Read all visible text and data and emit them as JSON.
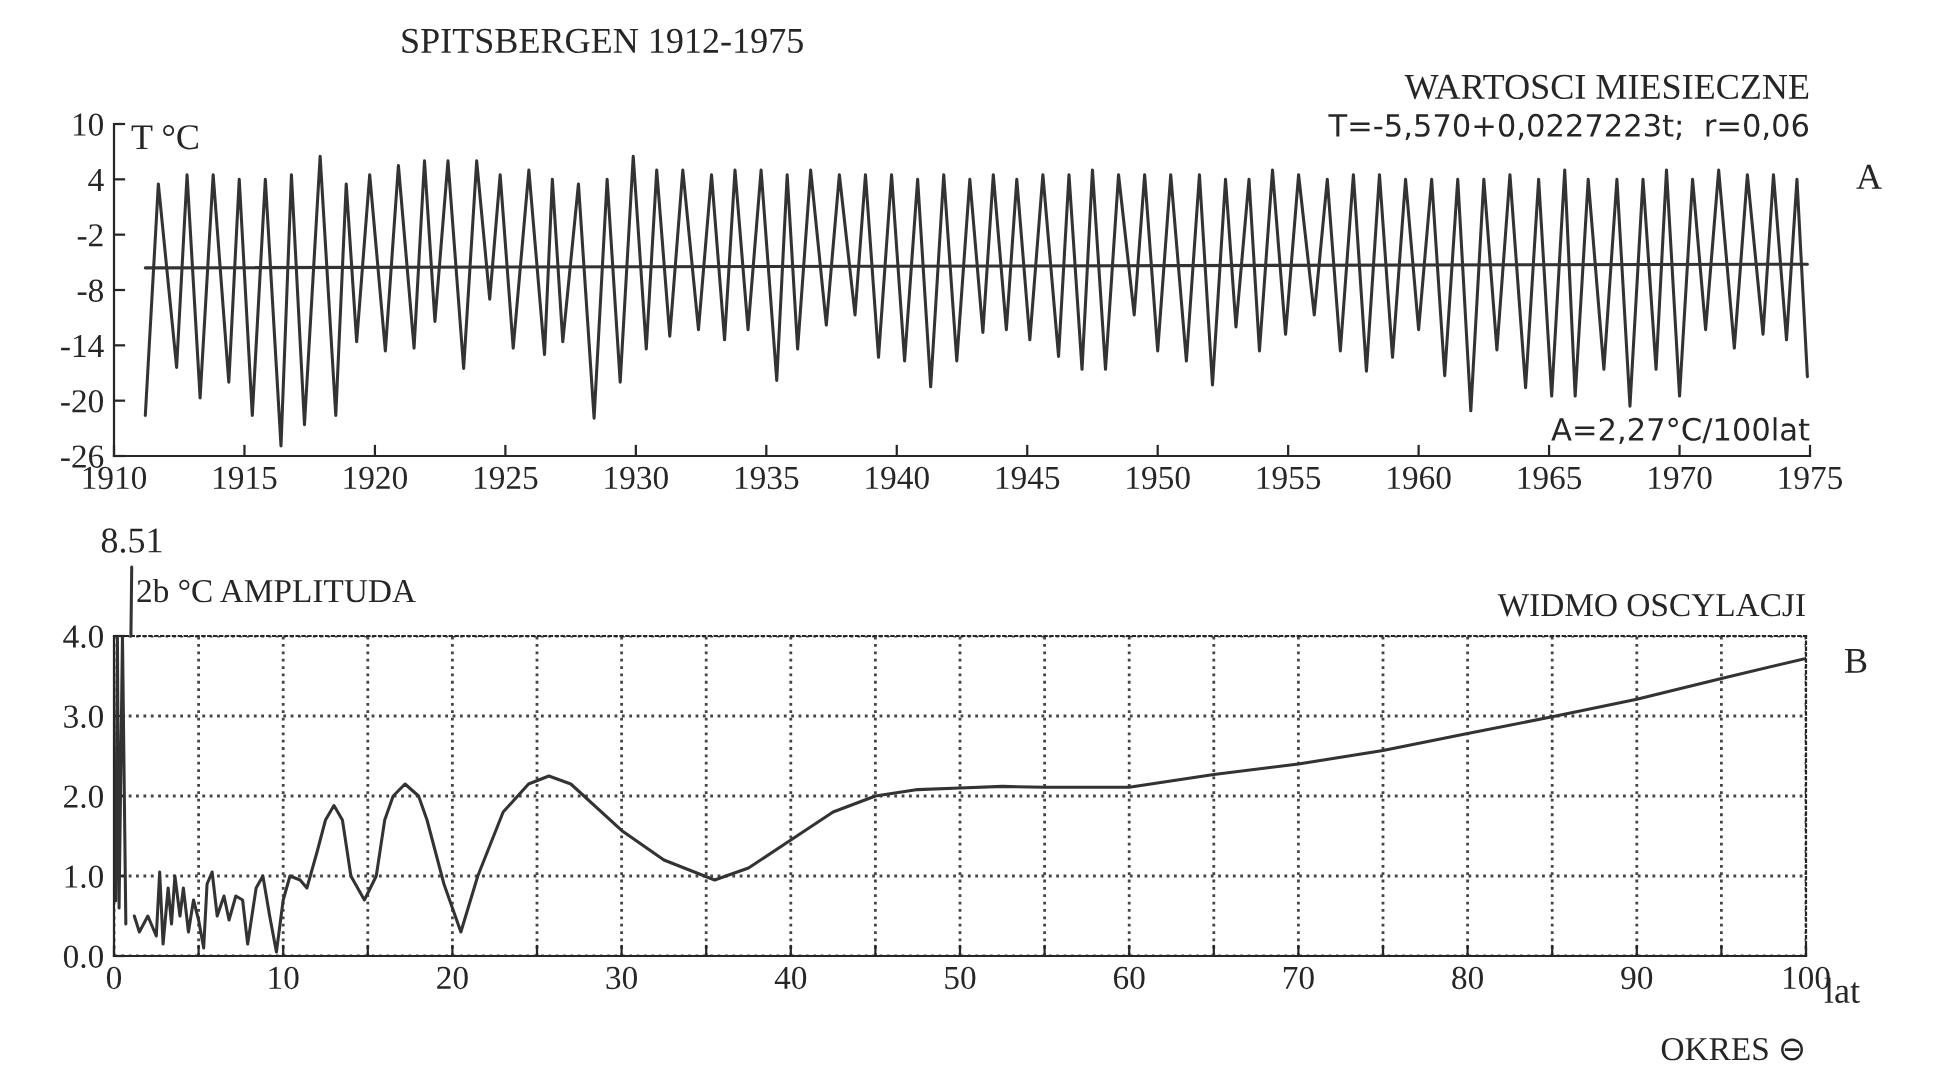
{
  "chart_data": [
    {
      "type": "line",
      "title": "SPITSBERGEN 1912-1975",
      "ylabel": "T °C",
      "annotations": [
        "WARTOSCI MIESIECZNE",
        "T=-5,570+0,0227223t;  r=0,06",
        "A",
        "A=2,27°C/100lat"
      ],
      "xlim": [
        1910,
        1975
      ],
      "xticks": [
        1910,
        1915,
        1920,
        1925,
        1930,
        1935,
        1940,
        1945,
        1950,
        1955,
        1960,
        1965,
        1970,
        1975
      ],
      "ylim": [
        -26,
        10
      ],
      "yticks": [
        -26,
        -20,
        -14,
        -8,
        -2,
        4,
        10
      ],
      "grid": false,
      "series": [
        {
          "type": "line",
          "color": "#333333",
          "x": [
            1911.2,
            1911.7,
            1912.4,
            1912.8,
            1913.3,
            1913.8,
            1914.4,
            1914.8,
            1915.3,
            1915.8,
            1916.4,
            1916.8,
            1917.3,
            1917.9,
            1918.5,
            1918.9,
            1919.3,
            1919.8,
            1920.4,
            1920.9,
            1921.5,
            1921.9,
            1922.3,
            1922.8,
            1923.4,
            1923.9,
            1924.4,
            1924.8,
            1925.3,
            1925.9,
            1926.5,
            1926.8,
            1927.2,
            1927.8,
            1928.4,
            1928.9,
            1929.4,
            1929.9,
            1930.4,
            1930.8,
            1931.3,
            1931.8,
            1932.4,
            1932.9,
            1933.4,
            1933.8,
            1934.3,
            1934.8,
            1935.4,
            1935.8,
            1936.2,
            1936.7,
            1937.3,
            1937.8,
            1938.4,
            1938.8,
            1939.3,
            1939.8,
            1940.3,
            1940.8,
            1941.3,
            1941.8,
            1942.3,
            1942.8,
            1943.3,
            1943.7,
            1944.2,
            1944.6,
            1945.1,
            1945.6,
            1946.2,
            1946.6,
            1947.1,
            1947.5,
            1948.0,
            1948.5,
            1949.1,
            1949.5,
            1950.0,
            1950.5,
            1951.1,
            1951.6,
            1952.1,
            1952.6,
            1953.0,
            1953.5,
            1953.9,
            1954.4,
            1954.9,
            1955.4,
            1956.0,
            1956.5,
            1957.0,
            1957.5,
            1958.0,
            1958.5,
            1959.0,
            1959.5,
            1960.0,
            1960.5,
            1961.0,
            1961.5,
            1962.0,
            1962.5,
            1963.0,
            1963.5,
            1964.1,
            1964.6,
            1965.1,
            1965.6,
            1966.0,
            1966.5,
            1967.1,
            1967.6,
            1968.1,
            1968.6,
            1969.1,
            1969.5,
            1970.0,
            1970.5,
            1971.0,
            1971.5,
            1972.1,
            1972.6,
            1973.2,
            1973.6,
            1974.1,
            1974.5,
            1974.9
          ],
          "values": [
            -21.6,
            3.5,
            -16.4,
            4.5,
            -19.7,
            4.5,
            -18,
            4,
            -21.6,
            4,
            -24.9,
            4.5,
            -22.6,
            6.5,
            -21.6,
            3.5,
            -13.6,
            4.5,
            -14.6,
            5.5,
            -14.3,
            6,
            -11.4,
            6,
            -16.5,
            6,
            -9,
            4.5,
            -14.3,
            5,
            -15,
            4,
            -13.6,
            3.5,
            -21.9,
            4,
            -18,
            6.5,
            -14.4,
            5,
            -13,
            5,
            -12.3,
            4.5,
            -13.4,
            5,
            -12.3,
            5,
            -17.8,
            4.5,
            -14.4,
            5,
            -11.8,
            4.5,
            -10.7,
            4.5,
            -15.3,
            4.5,
            -15.7,
            4,
            -18.5,
            4.5,
            -15.7,
            4,
            -12.6,
            4.5,
            -12.3,
            4,
            -13.4,
            4.5,
            -15.2,
            4.5,
            -16.6,
            5,
            -16.6,
            4.5,
            -10.7,
            4.5,
            -14.6,
            4.5,
            -15.7,
            4.5,
            -18.3,
            4,
            -12,
            4,
            -14.6,
            5,
            -12.8,
            4.5,
            -10.7,
            4,
            -14.6,
            4.5,
            -16.8,
            4.5,
            -15.3,
            4,
            -12.3,
            4,
            -17.3,
            4,
            -21.1,
            4,
            -14.5,
            4.5,
            -18.6,
            4,
            -19.5,
            5,
            -19.5,
            4,
            -16.6,
            4,
            -20.6,
            4,
            -16.6,
            5,
            -19.5,
            4,
            -12.3,
            5,
            -14.3,
            4.5,
            -12.8,
            4.5,
            -13.4,
            4,
            -17.4
          ]
        },
        {
          "type": "line",
          "color": "#333333",
          "x": [
            1911.2,
            1974.9
          ],
          "values": [
            -5.6,
            -5.2
          ]
        }
      ]
    },
    {
      "type": "line",
      "title": "WIDMO OSCYLACJI",
      "ylabel": "2b °C AMPLITUDA",
      "xlabel": "OKRES ⊖",
      "annotations": [
        {
          "text": "8.51",
          "x": 1.0,
          "y": 4
        },
        "B",
        "lat"
      ],
      "xlim": [
        0,
        100
      ],
      "xticks": [
        0,
        {
          "value": 5,
          "label": null
        },
        10,
        {
          "value": 15,
          "label": null
        },
        20,
        {
          "value": 25,
          "label": null
        },
        30,
        {
          "value": 35,
          "label": null
        },
        40,
        {
          "value": 45,
          "label": null
        },
        50,
        {
          "value": 55,
          "label": null
        },
        60,
        {
          "value": 65,
          "label": null
        },
        70,
        {
          "value": 75,
          "label": null
        },
        80,
        {
          "value": 85,
          "label": null
        },
        90,
        {
          "value": 95,
          "label": null
        },
        100
      ],
      "ylim": [
        0,
        4
      ],
      "yticks": [
        {
          "value": 0,
          "label": "0.0"
        },
        {
          "value": 1,
          "label": "1.0"
        },
        {
          "value": 2,
          "label": "2.0"
        },
        {
          "value": 3,
          "label": "3.0"
        },
        {
          "value": 4,
          "label": "4.0"
        }
      ],
      "grid": true,
      "line_style": "solid",
      "series": [
        {
          "type": "line",
          "color": "#333333",
          "x": [
            0.1,
            0.2,
            0.3,
            0.5,
            0.7,
            1.0,
            1.2,
            1.5,
            2.0,
            2.5,
            2.7,
            2.9,
            3.2,
            3.4,
            3.6,
            3.9,
            4.1,
            4.4,
            4.7,
            5.0,
            5.3,
            5.5,
            5.8,
            6.1,
            6.5,
            6.8,
            7.2,
            7.6,
            7.9,
            8.4,
            8.8,
            9.2,
            9.6,
            10.0,
            10.4,
            11.0,
            11.4,
            12.0,
            12.5,
            13.0,
            13.5,
            14.0,
            14.8,
            15.5,
            16.0,
            16.5,
            17.2,
            18.0,
            18.5,
            19.5,
            20.5,
            21.5,
            23.0,
            24.5,
            25.7,
            27.0,
            30.0,
            32.5,
            35.5,
            37.5,
            40.0,
            42.5,
            45.0,
            47.5,
            50.0,
            52.5,
            55.0,
            60.0,
            65.0,
            70.0,
            75.0,
            80.0,
            85.0,
            90.0,
            95.0,
            100.0
          ],
          "values": [
            0.69,
            4.0,
            0.6,
            4.0,
            0.4,
            null,
            0.5,
            0.3,
            0.5,
            0.25,
            1.05,
            0.15,
            0.85,
            0.4,
            1.0,
            0.5,
            0.85,
            0.3,
            0.7,
            0.45,
            0.1,
            0.9,
            1.05,
            0.5,
            0.75,
            0.45,
            0.75,
            0.7,
            0.15,
            0.85,
            1.0,
            0.5,
            0.05,
            0.7,
            1.0,
            0.95,
            0.85,
            1.3,
            1.7,
            1.88,
            1.7,
            1.0,
            0.7,
            1.0,
            1.7,
            2.0,
            2.15,
            2.0,
            1.7,
            0.9,
            0.3,
            1.0,
            1.8,
            2.15,
            2.25,
            2.15,
            1.57,
            1.2,
            0.95,
            1.1,
            1.45,
            1.8,
            2.0,
            2.08,
            2.1,
            2.12,
            2.11,
            2.11,
            2.27,
            2.4,
            2.57,
            2.78,
            2.99,
            3.21,
            3.47,
            3.72
          ]
        }
      ]
    }
  ]
}
